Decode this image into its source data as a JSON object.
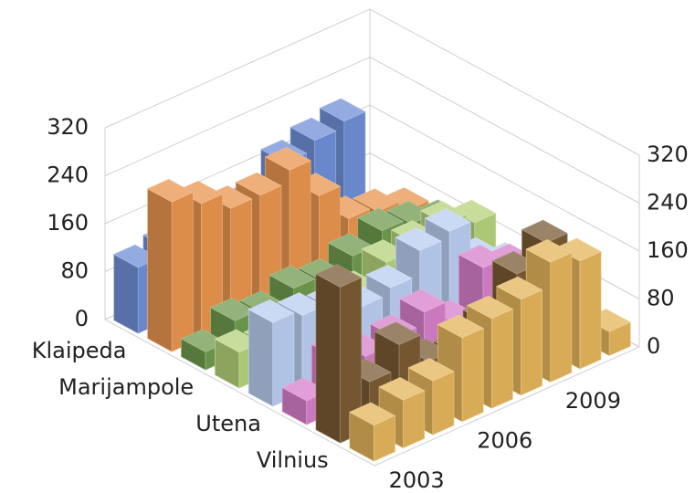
{
  "chart_data": {
    "type": "bar3d",
    "categories": [
      "2003",
      null,
      null,
      "2006",
      null,
      null,
      "2009",
      null,
      null
    ],
    "rows": [
      "Klaipeda",
      null,
      "Marijampole",
      null,
      "Utena",
      null,
      "Vilnius",
      null
    ],
    "series": [
      {
        "color": "#6f8fd6",
        "values": [
          110,
          120,
          130,
          125,
          130,
          175,
          190,
          200,
          15
        ]
      },
      {
        "color": "#e8944e",
        "values": [
          250,
          225,
          195,
          195,
          215,
          150,
          90,
          80,
          60
        ]
      },
      {
        "color": "#6f9a4e",
        "values": [
          30,
          60,
          50,
          70,
          60,
          80,
          100,
          90,
          70
        ]
      },
      {
        "color": "#b5d27a",
        "values": [
          60,
          50,
          40,
          60,
          70,
          100,
          110,
          120,
          100
        ]
      },
      {
        "color": "#b9cdf0",
        "values": [
          140,
          130,
          120,
          100,
          110,
          150,
          160,
          90,
          60
        ]
      },
      {
        "color": "#d67fc9",
        "values": [
          40,
          90,
          70,
          80,
          100,
          60,
          130,
          110,
          70
        ]
      },
      {
        "color": "#7a5a34",
        "values": [
          260,
          80,
          120,
          70,
          60,
          90,
          150,
          180,
          120
        ]
      },
      {
        "color": "#e3b45a",
        "values": [
          60,
          80,
          90,
          140,
          150,
          160,
          200,
          180,
          40
        ]
      }
    ],
    "ylim": [
      0,
      320
    ],
    "yticks": [
      0,
      80,
      160,
      240,
      320
    ],
    "grid": true
  }
}
